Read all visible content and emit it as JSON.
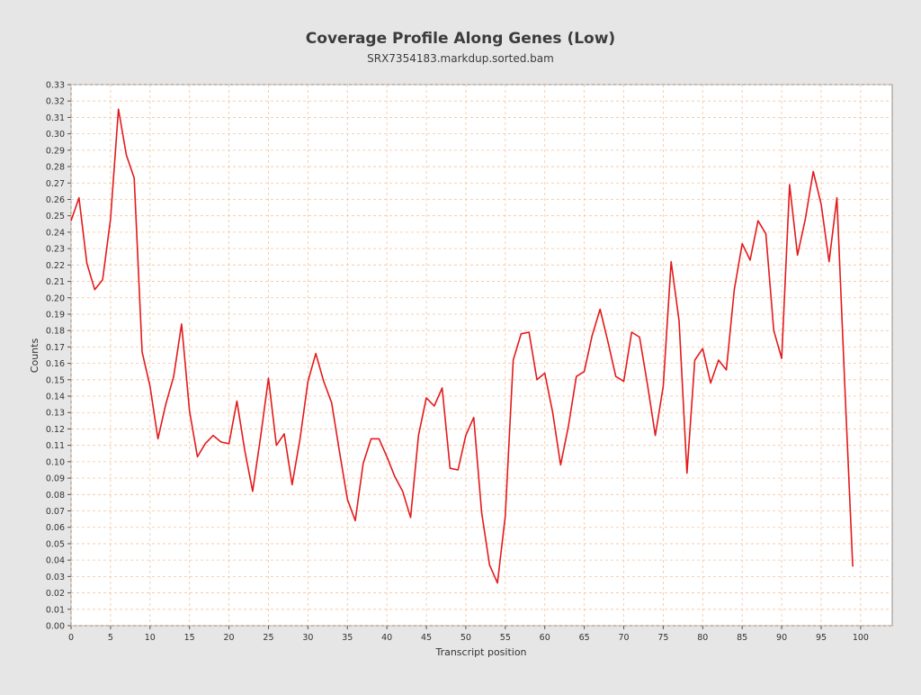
{
  "chart_data": {
    "type": "line",
    "title": "Coverage Profile Along Genes (Low)",
    "subtitle": "SRX7354183.markdup.sorted.bam",
    "xlabel": "Transcript position",
    "ylabel": "Counts",
    "xlim": [
      0,
      104
    ],
    "ylim": [
      0,
      0.33
    ],
    "grid": true,
    "x_ticks": [
      "0",
      "5",
      "10",
      "15",
      "20",
      "25",
      "30",
      "35",
      "40",
      "45",
      "50",
      "55",
      "60",
      "65",
      "70",
      "75",
      "80",
      "85",
      "90",
      "95",
      "100"
    ],
    "y_ticks": [
      "0.00",
      "0.01",
      "0.02",
      "0.03",
      "0.04",
      "0.05",
      "0.06",
      "0.07",
      "0.08",
      "0.09",
      "0.10",
      "0.11",
      "0.12",
      "0.13",
      "0.14",
      "0.15",
      "0.16",
      "0.17",
      "0.18",
      "0.19",
      "0.20",
      "0.21",
      "0.22",
      "0.23",
      "0.24",
      "0.25",
      "0.26",
      "0.27",
      "0.28",
      "0.29",
      "0.30",
      "0.31",
      "0.32",
      "0.33"
    ],
    "series": [
      {
        "color": "#e31a1c",
        "x": [
          0,
          1,
          2,
          3,
          4,
          5,
          6,
          7,
          8,
          9,
          10,
          11,
          12,
          13,
          14,
          15,
          16,
          17,
          18,
          19,
          20,
          21,
          22,
          23,
          24,
          25,
          26,
          27,
          28,
          29,
          30,
          31,
          32,
          33,
          34,
          35,
          36,
          37,
          38,
          39,
          40,
          41,
          42,
          43,
          44,
          45,
          46,
          47,
          48,
          49,
          50,
          51,
          52,
          53,
          54,
          55,
          56,
          57,
          58,
          59,
          60,
          61,
          62,
          63,
          64,
          65,
          66,
          67,
          68,
          69,
          70,
          71,
          72,
          73,
          74,
          75,
          76,
          77,
          78,
          79,
          80,
          81,
          82,
          83,
          84,
          85,
          86,
          87,
          88,
          89,
          90,
          91,
          92,
          93,
          94,
          95,
          96,
          97,
          98,
          99
        ],
        "values": [
          0.247,
          0.261,
          0.221,
          0.205,
          0.211,
          0.248,
          0.315,
          0.287,
          0.273,
          0.167,
          0.146,
          0.114,
          0.135,
          0.152,
          0.184,
          0.131,
          0.103,
          0.111,
          0.116,
          0.112,
          0.111,
          0.137,
          0.107,
          0.082,
          0.115,
          0.151,
          0.11,
          0.117,
          0.086,
          0.114,
          0.149,
          0.166,
          0.149,
          0.136,
          0.106,
          0.077,
          0.064,
          0.099,
          0.114,
          0.114,
          0.103,
          0.091,
          0.082,
          0.066,
          0.116,
          0.139,
          0.134,
          0.145,
          0.096,
          0.095,
          0.116,
          0.127,
          0.069,
          0.037,
          0.026,
          0.067,
          0.162,
          0.178,
          0.179,
          0.15,
          0.154,
          0.13,
          0.098,
          0.122,
          0.152,
          0.155,
          0.177,
          0.193,
          0.173,
          0.152,
          0.149,
          0.179,
          0.176,
          0.147,
          0.116,
          0.146,
          0.222,
          0.186,
          0.093,
          0.162,
          0.169,
          0.148,
          0.162,
          0.156,
          0.205,
          0.233,
          0.223,
          0.247,
          0.239,
          0.18,
          0.163,
          0.269,
          0.226,
          0.248,
          0.277,
          0.257,
          0.222,
          0.261,
          0.146,
          0.036
        ]
      }
    ]
  }
}
